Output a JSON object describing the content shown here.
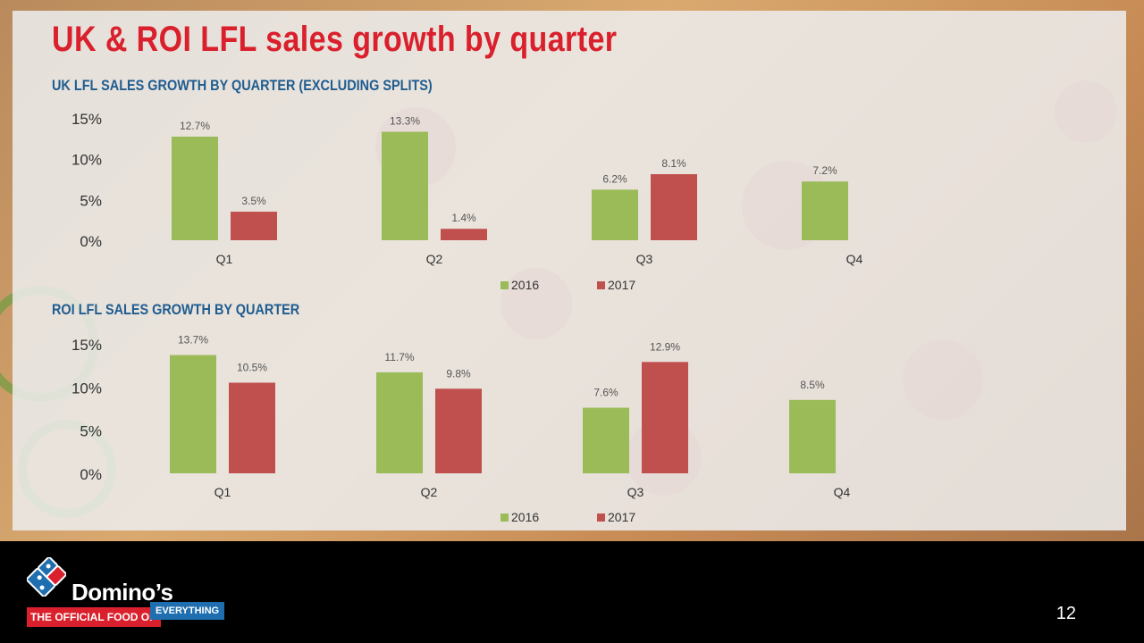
{
  "slide": {
    "title": "UK & ROI LFL sales growth by quarter",
    "page_number": "12"
  },
  "brand": {
    "name": "Domino’s",
    "tagline_left": "THE OFFICIAL FOOD OF",
    "tagline_right": "EVERYTHING"
  },
  "colors": {
    "title": "#d9202c",
    "subtitle": "#1f5c8f",
    "series_2016": "#9bbb59",
    "series_2017": "#c0504d"
  },
  "chart_data": [
    {
      "type": "bar",
      "title": "UK LFL SALES GROWTH BY QUARTER (EXCLUDING SPLITS)",
      "categories": [
        "Q1",
        "Q2",
        "Q3",
        "Q4"
      ],
      "series": [
        {
          "name": "2016",
          "values": [
            12.7,
            13.3,
            6.2,
            7.2
          ],
          "labels": [
            "12.7%",
            "13.3%",
            "6.2%",
            "7.2%"
          ]
        },
        {
          "name": "2017",
          "values": [
            3.5,
            1.4,
            8.1,
            null
          ],
          "labels": [
            "3.5%",
            "1.4%",
            "8.1%",
            ""
          ]
        }
      ],
      "ylim": [
        0,
        15
      ],
      "yticks": [
        "0%",
        "5%",
        "10%",
        "15%"
      ],
      "legend": "bottom",
      "grid": false
    },
    {
      "type": "bar",
      "title": "ROI LFL SALES GROWTH BY QUARTER",
      "categories": [
        "Q1",
        "Q2",
        "Q3",
        "Q4"
      ],
      "series": [
        {
          "name": "2016",
          "values": [
            13.7,
            11.7,
            7.6,
            8.5
          ],
          "labels": [
            "13.7%",
            "11.7%",
            "7.6%",
            "8.5%"
          ]
        },
        {
          "name": "2017",
          "values": [
            10.5,
            9.8,
            12.9,
            null
          ],
          "labels": [
            "10.5%",
            "9.8%",
            "12.9%",
            ""
          ]
        }
      ],
      "ylim": [
        0,
        15
      ],
      "yticks": [
        "0%",
        "5%",
        "10%",
        "15%"
      ],
      "legend": "bottom",
      "grid": false
    }
  ]
}
